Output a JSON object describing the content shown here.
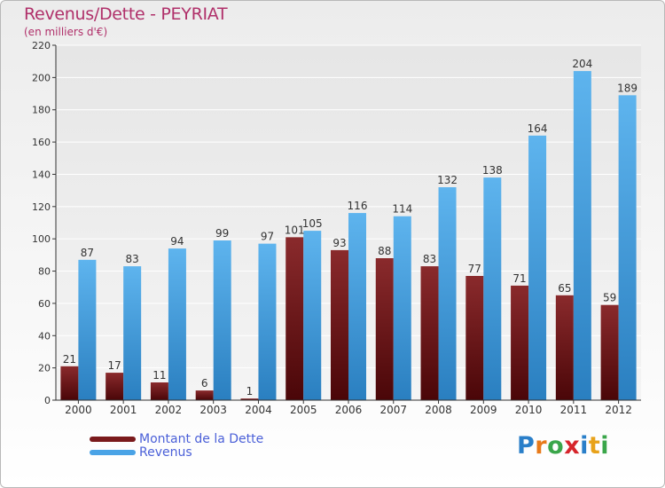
{
  "header": {
    "title": "Revenus/Dette - PEYRIAT",
    "subtitle": "(en milliers d'€)"
  },
  "logo": {
    "text": "Proxiti",
    "letters": [
      {
        "ch": "P",
        "color": "#2a7fc9"
      },
      {
        "ch": "r",
        "color": "#e87a1a"
      },
      {
        "ch": "o",
        "color": "#3aa64a"
      },
      {
        "ch": "x",
        "color": "#d6252b"
      },
      {
        "ch": "i",
        "color": "#2a7fc9"
      },
      {
        "ch": "t",
        "color": "#e8a21a"
      },
      {
        "ch": "i",
        "color": "#3aa64a"
      }
    ]
  },
  "colors": {
    "title": "#b0306a",
    "dette": "#7a1a1c",
    "revenus": "#4aa3e6",
    "axis": "#333333",
    "grid": "#ffffff"
  },
  "chart_data": {
    "type": "bar",
    "title": "Revenus/Dette - PEYRIAT",
    "subtitle": "(en milliers d'€)",
    "categories": [
      "2000",
      "2001",
      "2002",
      "2003",
      "2004",
      "2005",
      "2006",
      "2007",
      "2008",
      "2009",
      "2010",
      "2011",
      "2012"
    ],
    "series": [
      {
        "name": "Montant de la Dette",
        "color": "#7a1a1c",
        "values": [
          21,
          17,
          11,
          6,
          1,
          101,
          93,
          88,
          83,
          77,
          71,
          65,
          59
        ]
      },
      {
        "name": "Revenus",
        "color": "#4aa3e6",
        "values": [
          87,
          83,
          94,
          99,
          97,
          105,
          116,
          114,
          132,
          138,
          164,
          204,
          189
        ]
      }
    ],
    "yticks": [
      0,
      20,
      40,
      60,
      80,
      100,
      120,
      140,
      160,
      180,
      200,
      220
    ],
    "ylim": [
      0,
      220
    ],
    "grid": true,
    "legend": "bottom-left"
  }
}
